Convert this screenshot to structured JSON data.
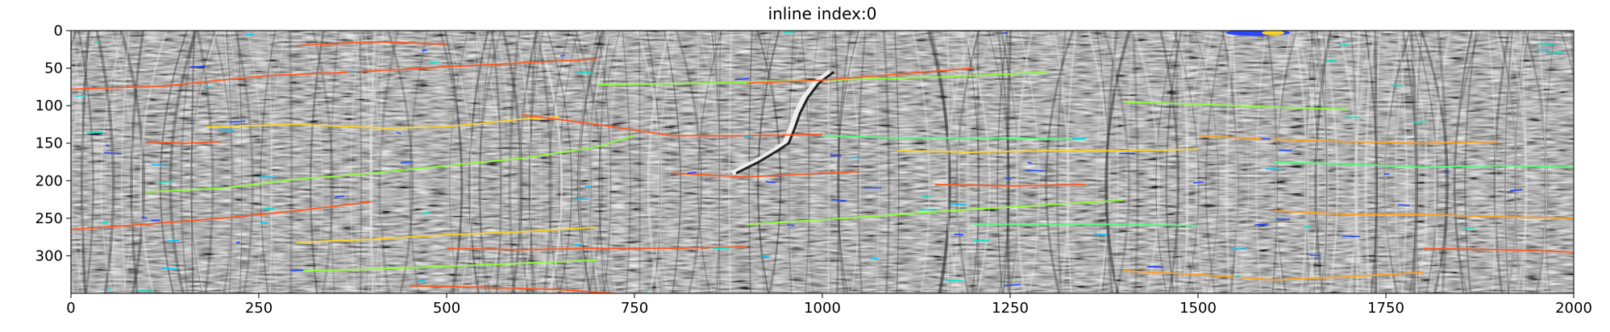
{
  "title": "inline index:0",
  "x_axis": {
    "ticks": [
      "0",
      "250",
      "500",
      "750",
      "1000",
      "1250",
      "1500",
      "1750",
      "2000"
    ],
    "range": [
      0,
      2000
    ]
  },
  "y_axis": {
    "ticks": [
      "0",
      "50",
      "100",
      "150",
      "200",
      "250",
      "300"
    ],
    "range": [
      0,
      350
    ],
    "inverted": true
  },
  "image": {
    "description_kind": "seismic-section",
    "background_colormap": "gray",
    "overlay_colormap": "jet"
  },
  "horizons": [
    {
      "color": "#ff5a1e",
      "points": [
        [
          0,
          78
        ],
        [
          120,
          74
        ],
        [
          260,
          60
        ],
        [
          380,
          55
        ],
        [
          470,
          50
        ],
        [
          560,
          45
        ],
        [
          700,
          38
        ]
      ]
    },
    {
      "color": "#8cff32",
      "points": [
        [
          700,
          72
        ],
        [
          850,
          70
        ],
        [
          1000,
          66
        ],
        [
          1150,
          62
        ],
        [
          1250,
          58
        ],
        [
          1300,
          55
        ]
      ]
    },
    {
      "color": "#ff5a1e",
      "points": [
        [
          900,
          70
        ],
        [
          1000,
          66
        ],
        [
          1100,
          58
        ],
        [
          1200,
          50
        ]
      ]
    },
    {
      "color": "#ffd21e",
      "points": [
        [
          180,
          128
        ],
        [
          300,
          125
        ],
        [
          420,
          130
        ],
        [
          500,
          128
        ],
        [
          600,
          118
        ],
        [
          650,
          115
        ]
      ]
    },
    {
      "color": "#ff5a1e",
      "points": [
        [
          600,
          112
        ],
        [
          700,
          125
        ],
        [
          800,
          140
        ],
        [
          900,
          140
        ],
        [
          1000,
          138
        ]
      ]
    },
    {
      "color": "#ffa01e",
      "points": [
        [
          1500,
          140
        ],
        [
          1600,
          145
        ],
        [
          1700,
          148
        ],
        [
          1800,
          150
        ],
        [
          1900,
          148
        ]
      ]
    },
    {
      "color": "#50ff7a",
      "points": [
        [
          1000,
          140
        ],
        [
          1100,
          143
        ],
        [
          1200,
          143
        ],
        [
          1350,
          145
        ]
      ]
    },
    {
      "color": "#8cff32",
      "points": [
        [
          100,
          215
        ],
        [
          200,
          210
        ],
        [
          300,
          198
        ],
        [
          400,
          190
        ],
        [
          500,
          180
        ],
        [
          600,
          170
        ],
        [
          700,
          155
        ],
        [
          750,
          140
        ]
      ]
    },
    {
      "color": "#ff5a1e",
      "points": [
        [
          800,
          190
        ],
        [
          900,
          195
        ],
        [
          1000,
          190
        ],
        [
          1050,
          188
        ]
      ]
    },
    {
      "color": "#ffd21e",
      "points": [
        [
          1100,
          160
        ],
        [
          1200,
          162
        ],
        [
          1300,
          160
        ],
        [
          1400,
          160
        ],
        [
          1500,
          158
        ]
      ]
    },
    {
      "color": "#ff5a1e",
      "points": [
        [
          1150,
          205
        ],
        [
          1250,
          207
        ],
        [
          1350,
          205
        ]
      ]
    },
    {
      "color": "#50ff7a",
      "points": [
        [
          1600,
          175
        ],
        [
          1700,
          178
        ],
        [
          1800,
          182
        ],
        [
          1900,
          180
        ],
        [
          2000,
          182
        ]
      ]
    },
    {
      "color": "#ff5a1e",
      "points": [
        [
          0,
          265
        ],
        [
          100,
          258
        ],
        [
          200,
          250
        ],
        [
          300,
          240
        ],
        [
          400,
          228
        ]
      ]
    },
    {
      "color": "#ffd21e",
      "points": [
        [
          300,
          282
        ],
        [
          400,
          278
        ],
        [
          500,
          272
        ],
        [
          600,
          268
        ],
        [
          700,
          262
        ]
      ]
    },
    {
      "color": "#ff5a1e",
      "points": [
        [
          500,
          290
        ],
        [
          600,
          292
        ],
        [
          700,
          290
        ],
        [
          800,
          290
        ],
        [
          900,
          288
        ]
      ]
    },
    {
      "color": "#8cff32",
      "points": [
        [
          900,
          258
        ],
        [
          1000,
          252
        ],
        [
          1100,
          245
        ],
        [
          1200,
          238
        ],
        [
          1300,
          232
        ],
        [
          1400,
          226
        ]
      ]
    },
    {
      "color": "#ffa01e",
      "points": [
        [
          1600,
          240
        ],
        [
          1700,
          245
        ],
        [
          1800,
          245
        ],
        [
          1900,
          248
        ],
        [
          2000,
          250
        ]
      ]
    },
    {
      "color": "#50ff7a",
      "points": [
        [
          1200,
          258
        ],
        [
          1300,
          258
        ],
        [
          1400,
          258
        ],
        [
          1500,
          260
        ]
      ]
    },
    {
      "color": "#ff5a1e",
      "points": [
        [
          450,
          340
        ],
        [
          550,
          342
        ],
        [
          650,
          345
        ],
        [
          750,
          352
        ]
      ]
    },
    {
      "color": "#8cff32",
      "points": [
        [
          300,
          320
        ],
        [
          400,
          318
        ],
        [
          500,
          314
        ],
        [
          600,
          310
        ],
        [
          700,
          306
        ]
      ]
    },
    {
      "color": "#ffa01e",
      "points": [
        [
          1400,
          320
        ],
        [
          1500,
          325
        ],
        [
          1600,
          332
        ],
        [
          1700,
          328
        ],
        [
          1800,
          322
        ]
      ]
    },
    {
      "color": "#ff5a1e",
      "points": [
        [
          1800,
          290
        ],
        [
          1900,
          292
        ],
        [
          2000,
          295
        ]
      ]
    },
    {
      "color": "#ff5a1e",
      "points": [
        [
          100,
          148
        ],
        [
          150,
          150
        ],
        [
          200,
          148
        ]
      ]
    },
    {
      "color": "#ff5a1e",
      "points": [
        [
          300,
          20
        ],
        [
          400,
          15
        ],
        [
          500,
          18
        ]
      ]
    },
    {
      "color": "#8cff32",
      "points": [
        [
          1400,
          95
        ],
        [
          1500,
          98
        ],
        [
          1600,
          102
        ],
        [
          1700,
          105
        ]
      ]
    }
  ],
  "dark_event": {
    "points": [
      [
        880,
        190
      ],
      [
        910,
        175
      ],
      [
        935,
        160
      ],
      [
        950,
        150
      ],
      [
        958,
        130
      ],
      [
        965,
        110
      ],
      [
        975,
        90
      ],
      [
        990,
        70
      ],
      [
        1010,
        55
      ]
    ]
  }
}
